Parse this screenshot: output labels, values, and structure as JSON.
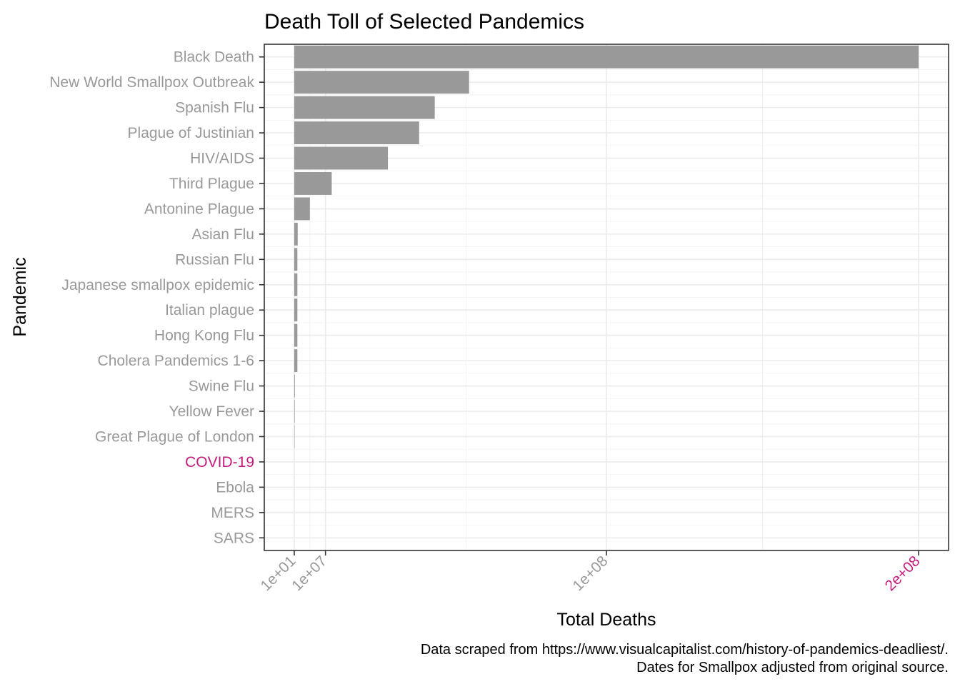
{
  "chart_data": {
    "type": "bar",
    "orientation": "horizontal",
    "title": "Death Toll of Selected Pandemics",
    "xlabel": "Total Deaths",
    "ylabel": "Pandemic",
    "caption": [
      "Data scraped from https://www.visualcapitalist.com/history-of-pandemics-deadliest/.",
      "Dates for Smallpox adjusted from original source."
    ],
    "categories": [
      "Black Death",
      "New World Smallpox Outbreak",
      "Spanish Flu",
      "Plague of Justinian",
      "HIV/AIDS",
      "Third Plague",
      "Antonine Plague",
      "Asian Flu",
      "Russian Flu",
      "Japanese smallpox epidemic",
      "Italian plague",
      "Hong Kong Flu",
      "Cholera Pandemics 1-6",
      "Swine Flu",
      "Yellow Fever",
      "Great Plague of London",
      "COVID-19",
      "Ebola",
      "MERS",
      "SARS"
    ],
    "values": [
      200000000,
      56000000,
      45000000,
      40000000,
      30000000,
      12000000,
      5000000,
      1100000,
      1000000,
      1000000,
      1000000,
      1000000,
      1000000,
      200000,
      150000,
      100000,
      10,
      11000,
      850,
      770
    ],
    "highlight_categories": [
      "COVID-19"
    ],
    "x_ticks": [
      {
        "value": 10,
        "label": "1e+01",
        "highlight": false
      },
      {
        "value": 10000000,
        "label": "1e+07",
        "highlight": false
      },
      {
        "value": 100000000,
        "label": "1e+08",
        "highlight": false
      },
      {
        "value": 200000000,
        "label": "2e+08",
        "highlight": true
      }
    ],
    "xlim": [
      -9600000,
      209600000
    ],
    "grid": true,
    "colors": {
      "bar": "#999999",
      "label": "#999999",
      "highlight": "#c51b7d",
      "text": "#000000"
    }
  }
}
